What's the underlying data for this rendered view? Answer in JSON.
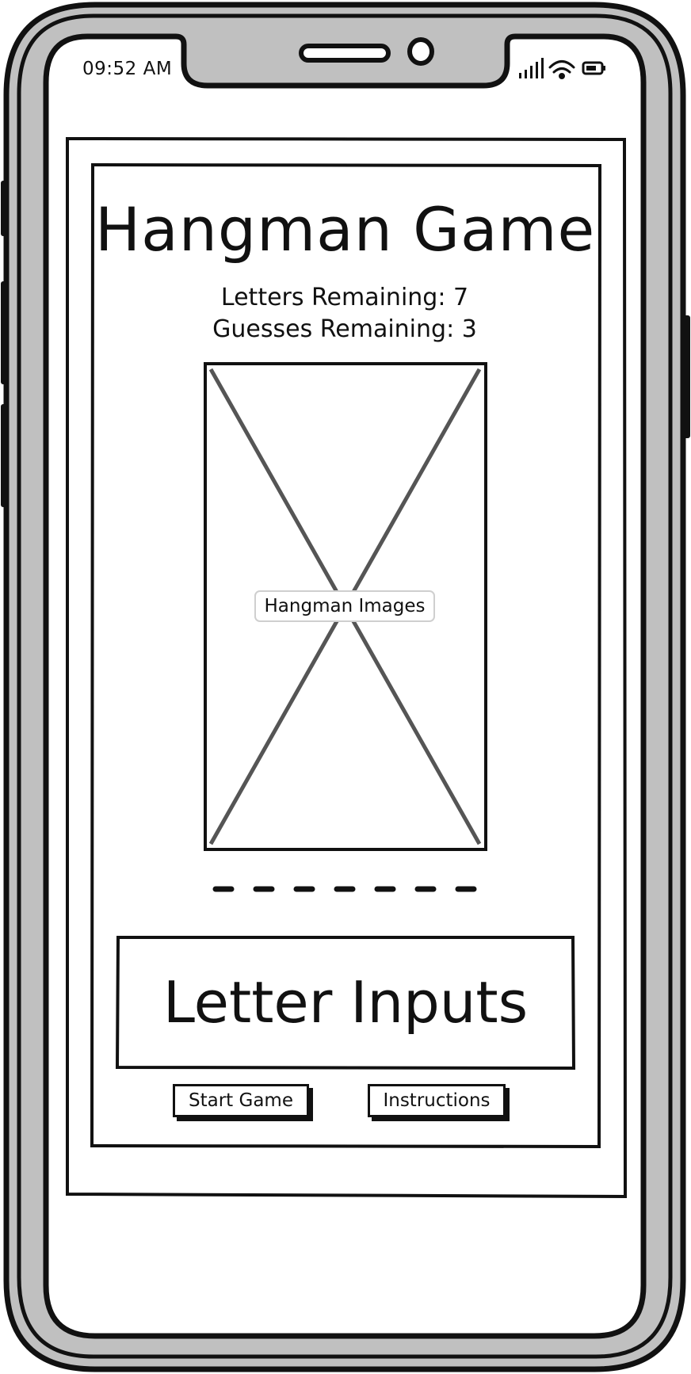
{
  "status_bar": {
    "time": "09:52 AM",
    "icons": [
      "signal-bars-icon",
      "wifi-icon",
      "battery-icon"
    ]
  },
  "game": {
    "title": "Hangman Game",
    "letters_remaining": "Letters Remaining: 7",
    "guesses_remaining": "Guesses Remaining: 3",
    "image_placeholder_label": "Hangman Images",
    "word_blanks_count": 7,
    "letter_inputs_label": "Letter Inputs"
  },
  "buttons": {
    "start": "Start Game",
    "instructions": "Instructions"
  },
  "colors": {
    "ink": "#111111",
    "device_frame": "#c0c0c0",
    "placeholder_cross": "#555555",
    "screen": "#ffffff"
  }
}
